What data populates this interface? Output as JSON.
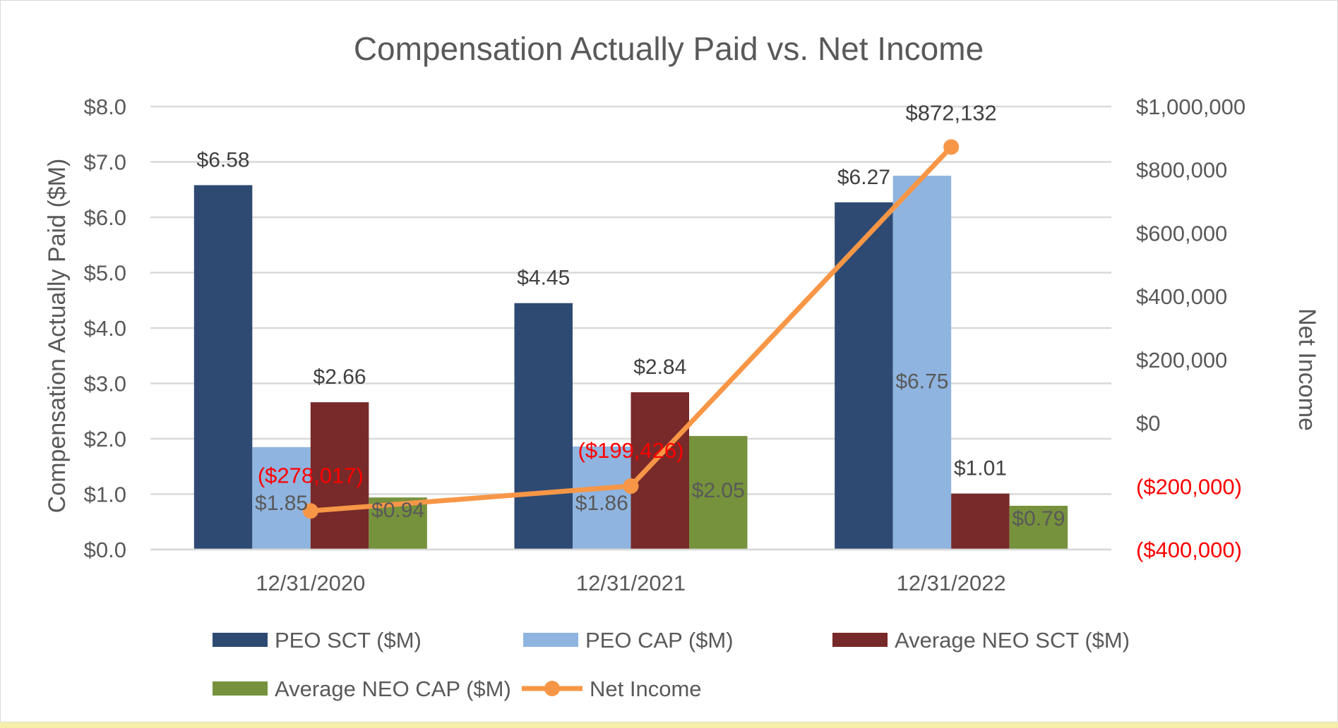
{
  "chart_data": {
    "type": "bar",
    "title": "Compensation Actually Paid vs. Net Income",
    "categories": [
      "12/31/2020",
      "12/31/2021",
      "12/31/2022"
    ],
    "ylabel": "Compensation Actually Paid ($M)",
    "y2label": "Net Income",
    "ylim": [
      0,
      8
    ],
    "y2lim": [
      -400000,
      1000000
    ],
    "y_ticks": [
      "$0.0",
      "$1.0",
      "$2.0",
      "$3.0",
      "$4.0",
      "$5.0",
      "$6.0",
      "$7.0",
      "$8.0"
    ],
    "y2_ticks": [
      "($400,000)",
      "($200,000)",
      "$0",
      "$200,000",
      "$400,000",
      "$600,000",
      "$800,000",
      "$1,000,000"
    ],
    "series": [
      {
        "name": "PEO SCT ($M)",
        "color": "#2e4a73",
        "values": [
          6.58,
          4.45,
          6.27
        ],
        "labels": [
          "$6.58",
          "$4.45",
          "$6.27"
        ]
      },
      {
        "name": "PEO CAP ($M)",
        "color": "#8fb4e0",
        "values": [
          1.85,
          1.86,
          6.75
        ],
        "labels": [
          "$1.85",
          "$1.86",
          "$6.75"
        ]
      },
      {
        "name": "Average NEO SCT ($M)",
        "color": "#772a29",
        "values": [
          2.66,
          2.84,
          1.01
        ],
        "labels": [
          "$2.66",
          "$2.84",
          "$1.01"
        ]
      },
      {
        "name": "Average NEO CAP ($M)",
        "color": "#76923c",
        "values": [
          0.94,
          2.05,
          0.79
        ],
        "labels": [
          "$0.94",
          "$2.05",
          "$0.79"
        ]
      }
    ],
    "line_series": {
      "name": "Net Income",
      "color": "#f79646",
      "values": [
        -278017,
        -199426,
        872132
      ],
      "labels": [
        "($278,017)",
        "($199,426)",
        "$872,132"
      ]
    },
    "grid": true,
    "legend_position": "bottom"
  }
}
